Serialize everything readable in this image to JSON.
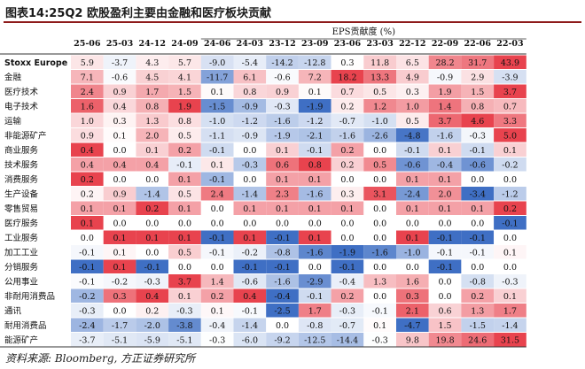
{
  "title": "图表14:25Q2 欧股盈利主要由金融和医疗板块贡献",
  "source": "资料来源: Bloomberg, 方正证券研究所",
  "chart_data": {
    "type": "heatmap",
    "title": "图表14:25Q2 欧股盈利主要由金融和医疗板块贡献",
    "header_label": "EPS贡献度 (%)",
    "columns": [
      "25-06",
      "25-03",
      "24-12",
      "24-09",
      "24-06",
      "24-03",
      "23-12",
      "23-09",
      "23-06",
      "23-03",
      "22-12",
      "22-09",
      "22-06",
      "22-03"
    ],
    "color_scale": {
      "positive": "#e8434e",
      "negative": "#3f6fc4",
      "neutral": "#ffffff"
    },
    "rows": [
      {
        "label": "Stoxx Europe 600:",
        "values": [
          "5.9",
          "-3.7",
          "4.3",
          "5.7",
          "-9.0",
          "-5.4",
          "-14.2",
          "-12.8",
          "0.3",
          "11.8",
          "6.5",
          "28.2",
          "31.7",
          "43.9"
        ]
      },
      {
        "label": "金融",
        "values": [
          "7.1",
          "-0.6",
          "4.5",
          "4.1",
          "-11.7",
          "6.1",
          "-0.6",
          "7.2",
          "18.2",
          "13.3",
          "4.9",
          "-0.9",
          "2.9",
          "-3.9"
        ]
      },
      {
        "label": "医疗技术",
        "values": [
          "2.4",
          "0.9",
          "1.7",
          "1.5",
          "0.1",
          "0.8",
          "0.9",
          "0.1",
          "0.7",
          "0.5",
          "0.3",
          "1.9",
          "1.5",
          "3.7"
        ]
      },
      {
        "label": "电子技术",
        "values": [
          "1.6",
          "0.4",
          "0.8",
          "1.9",
          "-1.5",
          "-0.9",
          "-0.3",
          "-1.9",
          "0.2",
          "1.2",
          "1.0",
          "1.4",
          "0.8",
          "0.7"
        ]
      },
      {
        "label": "运输",
        "values": [
          "1.0",
          "0.3",
          "1.3",
          "0.8",
          "-1.0",
          "-1.2",
          "-1.6",
          "-1.2",
          "-0.7",
          "-1.0",
          "0.5",
          "3.7",
          "4.6",
          "3.3"
        ]
      },
      {
        "label": "非能源矿产",
        "values": [
          "0.9",
          "0.1",
          "2.0",
          "0.5",
          "-1.1",
          "-0.9",
          "-1.9",
          "-2.1",
          "-1.6",
          "-2.6",
          "-4.8",
          "-1.6",
          "-0.3",
          "5.0"
        ]
      },
      {
        "label": "商业服务",
        "values": [
          "0.4",
          "0.0",
          "0.1",
          "0.2",
          "-0.1",
          "0.0",
          "0.1",
          "-0.1",
          "0.2",
          "0.0",
          "-0.1",
          "0.1",
          "-0.1",
          "0.1"
        ]
      },
      {
        "label": "技术服务",
        "values": [
          "0.4",
          "0.4",
          "0.4",
          "-0.1",
          "0.1",
          "-0.3",
          "0.6",
          "0.8",
          "0.2",
          "0.5",
          "-0.6",
          "-0.4",
          "-0.6",
          "-0.2"
        ]
      },
      {
        "label": "消费服务",
        "values": [
          "0.2",
          "0.0",
          "0.0",
          "0.1",
          "-0.1",
          "0.0",
          "0.1",
          "0.1",
          "0.0",
          "0.0",
          "0.1",
          "0.1",
          "0.0",
          "0.0"
        ]
      },
      {
        "label": "生产设备",
        "values": [
          "0.2",
          "0.9",
          "-1.4",
          "0.5",
          "2.4",
          "-1.4",
          "2.3",
          "-1.6",
          "0.3",
          "3.1",
          "-2.4",
          "2.0",
          "-3.4",
          "-1.2"
        ]
      },
      {
        "label": "零售贸易",
        "values": [
          "0.1",
          "0.1",
          "0.2",
          "0.1",
          "0.0",
          "0.1",
          "0.1",
          "0.1",
          "0.1",
          "0.0",
          "0.1",
          "0.1",
          "0.1",
          "0.2"
        ]
      },
      {
        "label": "医疗服务",
        "values": [
          "0.1",
          "0.0",
          "0.0",
          "0.0",
          "0.0",
          "0.0",
          "0.0",
          "0.0",
          "0.0",
          "0.0",
          "0.0",
          "0.0",
          "0.0",
          "-0.1"
        ]
      },
      {
        "label": "工业服务",
        "values": [
          "0.0",
          "0.1",
          "0.1",
          "0.1",
          "-0.1",
          "0.1",
          "-0.1",
          "0.1",
          "0.0",
          "0.0",
          "0.1",
          "-0.1",
          "-0.1",
          "0.0"
        ]
      },
      {
        "label": "加工工业",
        "values": [
          "-0.1",
          "0.1",
          "0.0",
          "0.5",
          "-0.1",
          "-0.2",
          "-0.8",
          "-1.6",
          "-1.9",
          "-1.6",
          "-1.0",
          "-0.1",
          "-0.1",
          "0.1"
        ]
      },
      {
        "label": "分销服务",
        "values": [
          "-0.1",
          "0.1",
          "-0.1",
          "0.0",
          "0.0",
          "-0.1",
          "-0.1",
          "0.0",
          "-0.1",
          "0.0",
          "0.0",
          "-0.1",
          "0.0",
          "0.0"
        ]
      },
      {
        "label": "公用事业",
        "values": [
          "-0.1",
          "-0.2",
          "-0.3",
          "3.7",
          "1.4",
          "-0.6",
          "-1.6",
          "-2.9",
          "-0.4",
          "1.3",
          "1.6",
          "0.0",
          "-0.8",
          "-0.3"
        ]
      },
      {
        "label": "非耐用消费品",
        "values": [
          "-0.2",
          "0.3",
          "0.4",
          "0.1",
          "0.2",
          "0.4",
          "-0.4",
          "-0.1",
          "0.2",
          "0.0",
          "0.3",
          "0.0",
          "0.2",
          "0.1"
        ]
      },
      {
        "label": "通讯",
        "values": [
          "-0.3",
          "0.0",
          "0.2",
          "-0.3",
          "0.1",
          "-0.1",
          "-2.5",
          "1.7",
          "-0.3",
          "-0.1",
          "2.1",
          "0.6",
          "1.3",
          "1.7"
        ]
      },
      {
        "label": "耐用消费品",
        "values": [
          "-2.4",
          "-1.7",
          "-2.0",
          "-3.8",
          "-0.4",
          "-1.4",
          "0.0",
          "-0.8",
          "-0.7",
          "0.1",
          "-4.7",
          "1.5",
          "-1.5",
          "-1.4"
        ]
      },
      {
        "label": "能源矿产",
        "values": [
          "-3.7",
          "-5.1",
          "-5.9",
          "-5.1",
          "-0.3",
          "-6.0",
          "-9.2",
          "-12.5",
          "-14.4",
          "-0.3",
          "9.8",
          "19.8",
          "24.6",
          "31.5"
        ]
      }
    ]
  }
}
